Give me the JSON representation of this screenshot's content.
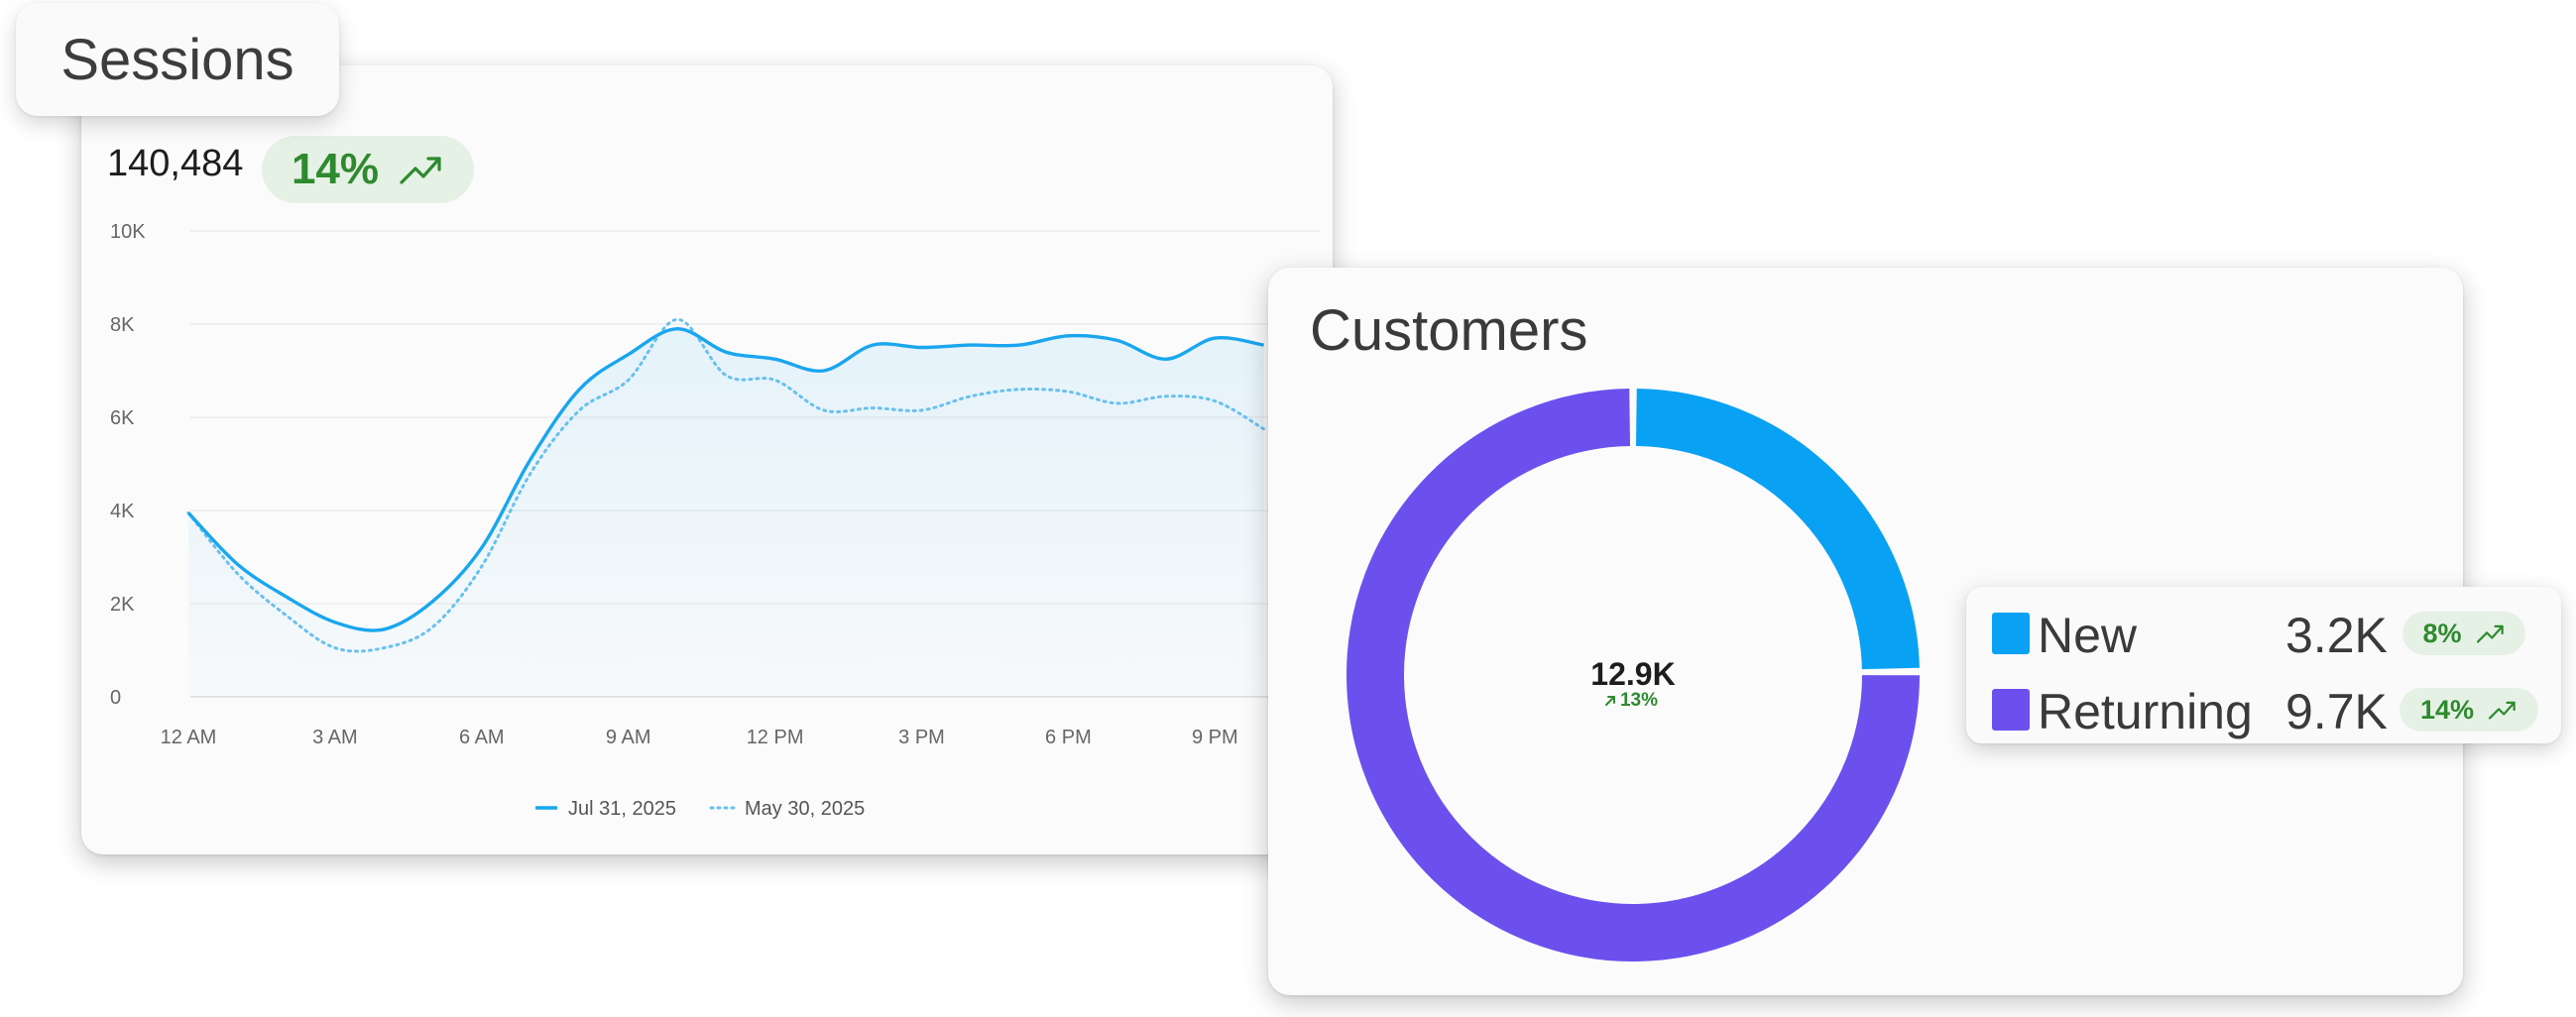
{
  "colors": {
    "current_series": "#1aa6ee",
    "previous_series": "#69c0ee",
    "new_customers": "#09a1f3",
    "returning_customers": "#6b50ee",
    "positive_trend": "#2e8a2e",
    "positive_trend_bg": "#e6f1e6"
  },
  "sessions": {
    "title": "Sessions",
    "total": "140,484",
    "change": "14%",
    "trend_icon": "trend-up-icon"
  },
  "customers": {
    "title": "Customers",
    "center_value": "12.9K",
    "center_change": "13%",
    "legend": [
      {
        "label": "New",
        "value": "3.2K",
        "change": "8%",
        "trend_icon": "trend-up-icon"
      },
      {
        "label": "Returning",
        "value": "9.7K",
        "change": "14%",
        "trend_icon": "trend-up-icon"
      }
    ]
  },
  "chart_data": [
    {
      "type": "line",
      "x": [
        "12 AM",
        "1 AM",
        "2 AM",
        "3 AM",
        "4 AM",
        "5 AM",
        "6 AM",
        "7 AM",
        "8 AM",
        "9 AM",
        "10 AM",
        "11 AM",
        "12 PM",
        "1 PM",
        "2 PM",
        "3 PM",
        "4 PM",
        "5 PM",
        "6 PM",
        "7 PM",
        "8 PM",
        "9 PM",
        "10 PM"
      ],
      "x_tick_labels": [
        "12 AM",
        "3 AM",
        "6 AM",
        "9 AM",
        "12 PM",
        "3 PM",
        "6 PM",
        "9 PM"
      ],
      "y_tick_labels": [
        "0",
        "2K",
        "4K",
        "6K",
        "8K",
        "10K"
      ],
      "ylim": [
        0,
        10000
      ],
      "grid": true,
      "legend_position": "bottom",
      "series": [
        {
          "name": "Jul 31, 2025",
          "style": "solid",
          "values": [
            3950,
            2850,
            2150,
            1600,
            1450,
            2050,
            3200,
            5100,
            6600,
            7350,
            7900,
            7400,
            7250,
            7000,
            7550,
            7500,
            7550,
            7550,
            7750,
            7650,
            7250,
            7700,
            7550
          ]
        },
        {
          "name": "May 30, 2025",
          "style": "dotted",
          "values": [
            3950,
            2650,
            1750,
            1050,
            1050,
            1500,
            2800,
            4800,
            6150,
            6800,
            8100,
            6900,
            6800,
            6150,
            6200,
            6150,
            6450,
            6600,
            6550,
            6300,
            6450,
            6350,
            5750
          ]
        }
      ]
    },
    {
      "type": "pie",
      "style": "donut",
      "categories": [
        "New",
        "Returning"
      ],
      "values": [
        3200,
        9700
      ],
      "total": "12.9K"
    }
  ]
}
